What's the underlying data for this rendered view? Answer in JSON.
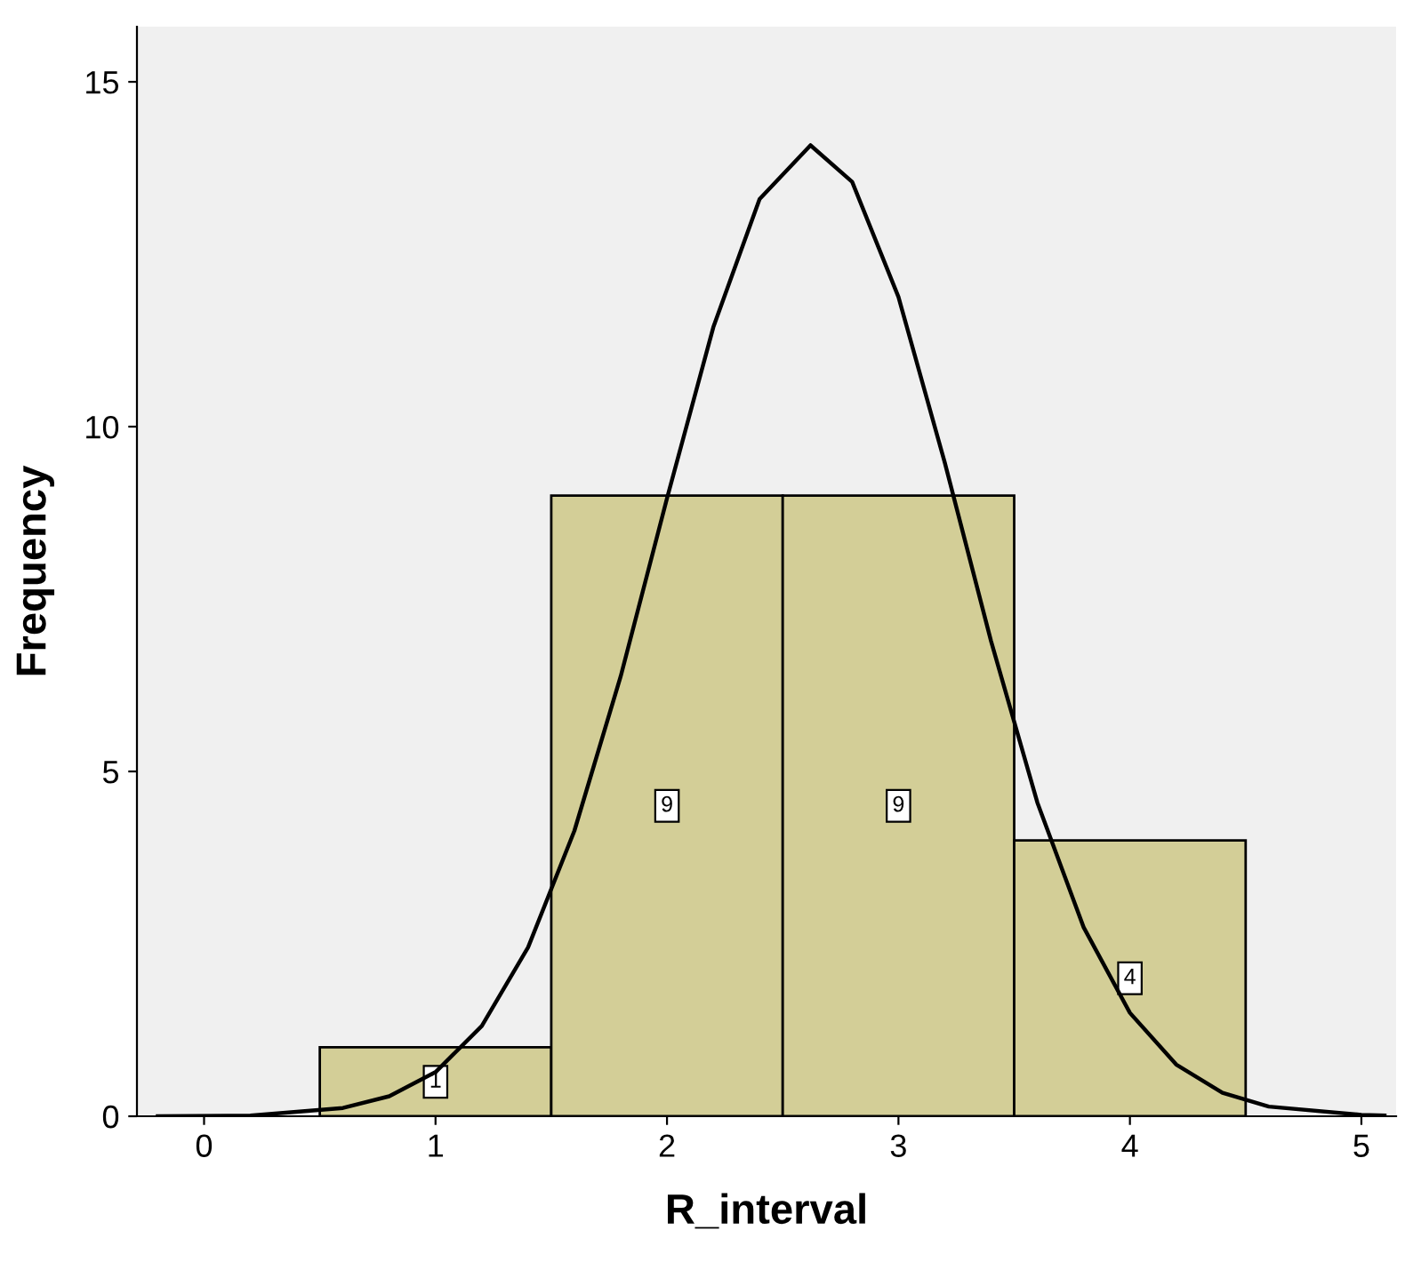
{
  "chart_data": {
    "type": "histogram",
    "xlabel": "R_interval",
    "ylabel": "Frequency",
    "xlim": [
      -0.29,
      5.15
    ],
    "ylim": [
      0,
      15.8
    ],
    "xticks": [
      0,
      1,
      2,
      3,
      4,
      5
    ],
    "yticks": [
      0,
      5,
      10,
      15
    ],
    "grid": false,
    "series": [
      {
        "bins": [
          0.5,
          1.5,
          2.5,
          3.5,
          4.5
        ],
        "values": [
          1,
          9,
          9,
          4
        ],
        "value_labels": [
          "1",
          "9",
          "9",
          "4"
        ],
        "color": "#d3ce97"
      },
      {
        "type": "line",
        "color": "#000000",
        "x": [
          -0.2,
          0.2,
          0.6,
          0.8,
          1.0,
          1.2,
          1.4,
          1.6,
          1.8,
          2.0,
          2.2,
          2.4,
          2.62,
          2.8,
          3.0,
          3.2,
          3.4,
          3.6,
          3.8,
          4.0,
          4.2,
          4.4,
          4.6,
          5.0,
          5.1
        ],
        "values": [
          0.0,
          0.01,
          0.12,
          0.29,
          0.64,
          1.31,
          2.45,
          4.14,
          6.38,
          8.96,
          11.44,
          13.3,
          14.08,
          13.55,
          11.88,
          9.48,
          6.89,
          4.55,
          2.74,
          1.5,
          0.75,
          0.34,
          0.14,
          0.02,
          0.01
        ]
      }
    ]
  }
}
